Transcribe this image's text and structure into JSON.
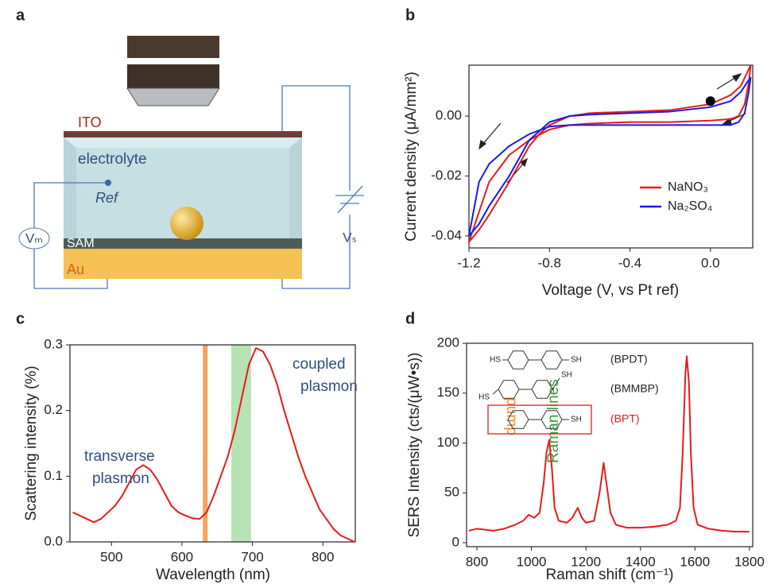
{
  "panel_labels": [
    "a",
    "b",
    "c",
    "d"
  ],
  "diagram": {
    "ito": "ITO",
    "electrolyte": "electrolyte",
    "ref": "Ref",
    "sam": "SAM",
    "au": "Au",
    "vm": "Vₘ",
    "vs": "Vₛ"
  },
  "chart_data": [
    {
      "type": "loop",
      "xlabel": "Voltage (V, vs Pt ref)",
      "ylabel": "Current density (μA/mm²)",
      "xlim": [
        -1.2,
        0.21
      ],
      "ylim": [
        -0.044,
        0.017
      ],
      "xticks": [
        -1.2,
        -0.8,
        -0.4,
        {
          "value": 0,
          "label": "0.0"
        }
      ],
      "yticks": [
        -0.04,
        -0.02,
        {
          "value": 0,
          "label": "0.00"
        }
      ],
      "series": [
        {
          "name": "NaNO₃",
          "color": "#e8191c",
          "x": [
            0.2,
            0.19,
            0.17,
            0.14,
            0.1,
            0.0,
            -0.2,
            -0.4,
            -0.6,
            -0.7,
            -0.8,
            -0.9,
            -1.0,
            -1.1,
            -1.2,
            -1.15,
            -1.1,
            -1.0,
            -0.9,
            -0.85,
            -0.8,
            -0.7,
            -0.6,
            -0.4,
            -0.2,
            0.0,
            0.1,
            0.15,
            0.2
          ],
          "values": [
            0.017,
            0.011,
            0.004,
            0.0,
            -0.001,
            -0.0015,
            -0.002,
            -0.002,
            -0.0025,
            -0.003,
            -0.0045,
            -0.008,
            -0.013,
            -0.022,
            -0.042,
            -0.038,
            -0.033,
            -0.022,
            -0.01,
            -0.006,
            -0.003,
            0.0,
            0.001,
            0.0015,
            0.002,
            0.004,
            0.007,
            0.01,
            0.017
          ]
        },
        {
          "name": "Na₂SO₄",
          "color": "#1a1ae0",
          "x": [
            0.2,
            0.19,
            0.17,
            0.14,
            0.1,
            0.0,
            -0.2,
            -0.4,
            -0.6,
            -0.7,
            -0.8,
            -0.9,
            -1.0,
            -1.1,
            -1.15,
            -1.2,
            -1.15,
            -1.1,
            -1.0,
            -0.9,
            -0.85,
            -0.8,
            -0.7,
            -0.6,
            -0.4,
            -0.2,
            0.0,
            0.1,
            0.15,
            0.2
          ],
          "values": [
            0.013,
            0.008,
            0.001,
            -0.002,
            -0.003,
            -0.003,
            -0.003,
            -0.003,
            -0.003,
            -0.003,
            -0.0035,
            -0.006,
            -0.01,
            -0.016,
            -0.022,
            -0.04,
            -0.036,
            -0.03,
            -0.02,
            -0.008,
            -0.005,
            -0.002,
            0.0,
            0.0005,
            0.001,
            0.0015,
            0.003,
            0.005,
            0.008,
            0.013
          ]
        }
      ],
      "marker": {
        "x": 0.0,
        "y": 0.005
      }
    },
    {
      "type": "line",
      "xlabel": "Wavelength (nm)",
      "ylabel": "Scattering intensity (%)",
      "xlim": [
        441,
        846
      ],
      "ylim": [
        0,
        0.3
      ],
      "xticks": [
        500,
        600,
        700,
        800
      ],
      "yticks": [
        {
          "value": 0,
          "label": "0.0"
        },
        0.1,
        0.2,
        0.3
      ],
      "x": [
        445,
        455,
        465,
        475,
        485,
        495,
        505,
        515,
        525,
        535,
        545,
        555,
        565,
        575,
        585,
        595,
        605,
        615,
        625,
        635,
        645,
        655,
        665,
        675,
        685,
        695,
        705,
        715,
        725,
        735,
        745,
        755,
        765,
        775,
        785,
        795,
        805,
        815,
        825,
        835,
        845
      ],
      "series": [
        {
          "color": "#e8191c",
          "values": [
            0.045,
            0.04,
            0.035,
            0.03,
            0.035,
            0.045,
            0.055,
            0.07,
            0.09,
            0.11,
            0.117,
            0.11,
            0.095,
            0.075,
            0.055,
            0.045,
            0.04,
            0.036,
            0.035,
            0.045,
            0.07,
            0.1,
            0.13,
            0.17,
            0.22,
            0.27,
            0.295,
            0.29,
            0.27,
            0.24,
            0.2,
            0.165,
            0.13,
            0.1,
            0.075,
            0.05,
            0.035,
            0.02,
            0.01,
            0.005,
            0.0
          ]
        }
      ],
      "pump_line": 633,
      "raman_band": [
        670,
        698
      ],
      "annotations": [
        "transverse",
        "plasmon",
        "coupled",
        "plasmon",
        "pump",
        "Raman lines"
      ]
    },
    {
      "type": "line",
      "xlabel": "Raman shift (cm⁻¹)",
      "ylabel": "SERS Intensity (cts/(μW•s))",
      "xlim": [
        762,
        1812
      ],
      "ylim": [
        -4,
        200
      ],
      "xticks": [
        800,
        1000,
        1200,
        1400,
        1600,
        1800
      ],
      "yticks": [
        0,
        50,
        100,
        150,
        200
      ],
      "x": [
        770,
        800,
        830,
        860,
        900,
        940,
        970,
        990,
        1010,
        1030,
        1045,
        1055,
        1065,
        1075,
        1085,
        1100,
        1130,
        1150,
        1170,
        1185,
        1200,
        1230,
        1250,
        1265,
        1275,
        1290,
        1310,
        1350,
        1400,
        1450,
        1500,
        1530,
        1545,
        1555,
        1565,
        1570,
        1578,
        1585,
        1595,
        1610,
        1650,
        1700,
        1750,
        1800
      ],
      "series": [
        {
          "color": "#e8191c",
          "values": [
            12,
            14,
            13,
            12,
            14,
            18,
            22,
            28,
            25,
            30,
            60,
            90,
            103,
            75,
            35,
            22,
            20,
            25,
            35,
            25,
            20,
            22,
            50,
            80,
            60,
            30,
            18,
            15,
            15,
            16,
            18,
            22,
            35,
            90,
            170,
            187,
            160,
            90,
            35,
            18,
            14,
            12,
            11,
            11
          ]
        }
      ],
      "molecules": [
        {
          "label": "(BPDT)",
          "left": "HS",
          "right": "SH"
        },
        {
          "label": "(BMMBP)",
          "left": "HS",
          "right": "SH"
        },
        {
          "label": "(BPT)",
          "right": "SH"
        }
      ]
    }
  ]
}
